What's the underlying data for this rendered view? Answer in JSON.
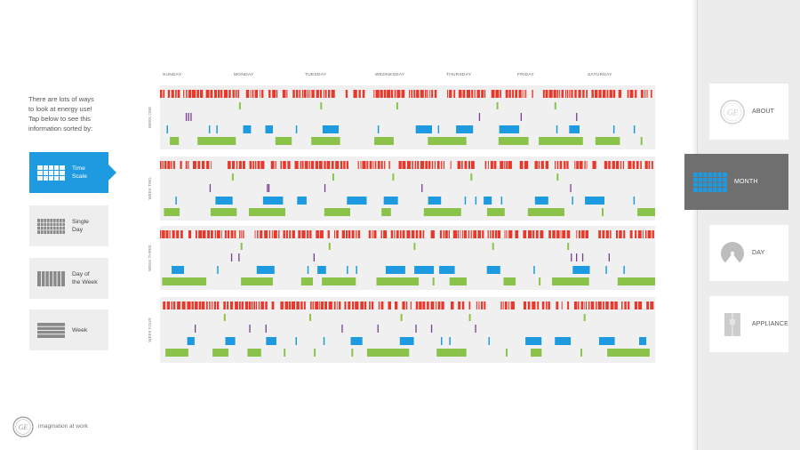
{
  "intro": {
    "line1": "There are lots of ways",
    "line2": "to look at energy use!",
    "line3": "Tap below to see this",
    "line4": "information sorted by:"
  },
  "sort_options": [
    {
      "line1": "Time",
      "line2": "Scale"
    },
    {
      "line1": "Single",
      "line2": "Day"
    },
    {
      "line1": "Day of",
      "line2": "the Week"
    },
    {
      "line1": "Week",
      "line2": ""
    }
  ],
  "brand": {
    "tagline": "imagination at work"
  },
  "days": [
    "SUNDAY",
    "MONDAY",
    "TUESDAY",
    "WEDNESDAY",
    "THURSDAY",
    "FRIDAY",
    "SATURDAY"
  ],
  "weeks": [
    {
      "label": "WEEK ONE"
    },
    {
      "label": "WEEK TWO"
    },
    {
      "label": "WEEK THREE"
    },
    {
      "label": "WEEK FOUR"
    }
  ],
  "nav": [
    {
      "label": "ABOUT"
    },
    {
      "label": "MONTH"
    },
    {
      "label": "DAY"
    },
    {
      "label": "APPLIANCE"
    }
  ],
  "colors": {
    "red": "#e8372b",
    "green": "#8bc34a",
    "blue": "#1e9be0",
    "purple": "#7b3f8c",
    "panel": "#f0f0f0",
    "accent": "#1e9be0",
    "nav_active": "#6f6f6f"
  }
}
